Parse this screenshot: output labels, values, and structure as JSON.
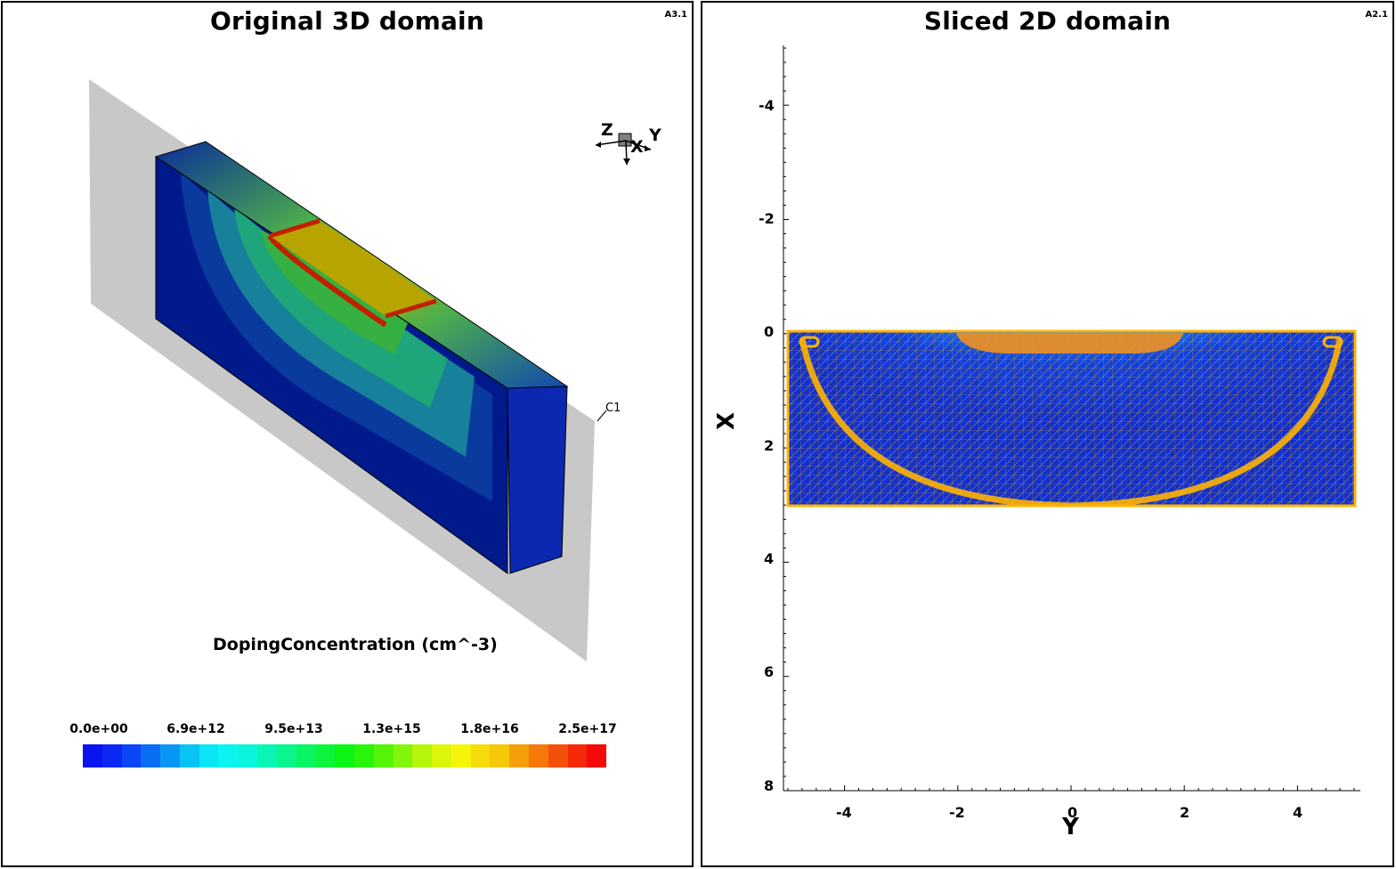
{
  "left_panel": {
    "title": "Original 3D domain",
    "tag": "A3.1",
    "cut_label": "C1",
    "orientation": {
      "x": "X",
      "y": "Y",
      "z": "Z"
    },
    "colorbar": {
      "title": "DopingConcentration (cm^-3)",
      "ticks": [
        "0.0e+00",
        "6.9e+12",
        "9.5e+13",
        "1.3e+15",
        "1.8e+16",
        "2.5e+17"
      ],
      "colors": [
        "#0a14f0",
        "#0a28f5",
        "#0a46f5",
        "#0a6ef5",
        "#0a96f5",
        "#0ac3f5",
        "#0ae6f5",
        "#0af5f0",
        "#0af5dc",
        "#0af5b4",
        "#0af58c",
        "#0af564",
        "#0af53c",
        "#0af514",
        "#28f50a",
        "#55f50a",
        "#82f50a",
        "#b4f50a",
        "#dcf50a",
        "#f5f50a",
        "#f5dc0a",
        "#f5c80a",
        "#f5a00a",
        "#f5780a",
        "#f5500a",
        "#f5280a",
        "#f50a0a"
      ]
    }
  },
  "right_panel": {
    "title": "Sliced 2D domain",
    "tag": "A2.1",
    "x_axis_label": "Y",
    "y_axis_label": "X",
    "x_ticks": [
      "-4",
      "-2",
      "0",
      "2",
      "4"
    ],
    "y_ticks": [
      "-4",
      "-2",
      "0",
      "2",
      "4",
      "6",
      "8"
    ],
    "mesh_color": "#ffb400",
    "background_fill": "#1030d0"
  }
}
